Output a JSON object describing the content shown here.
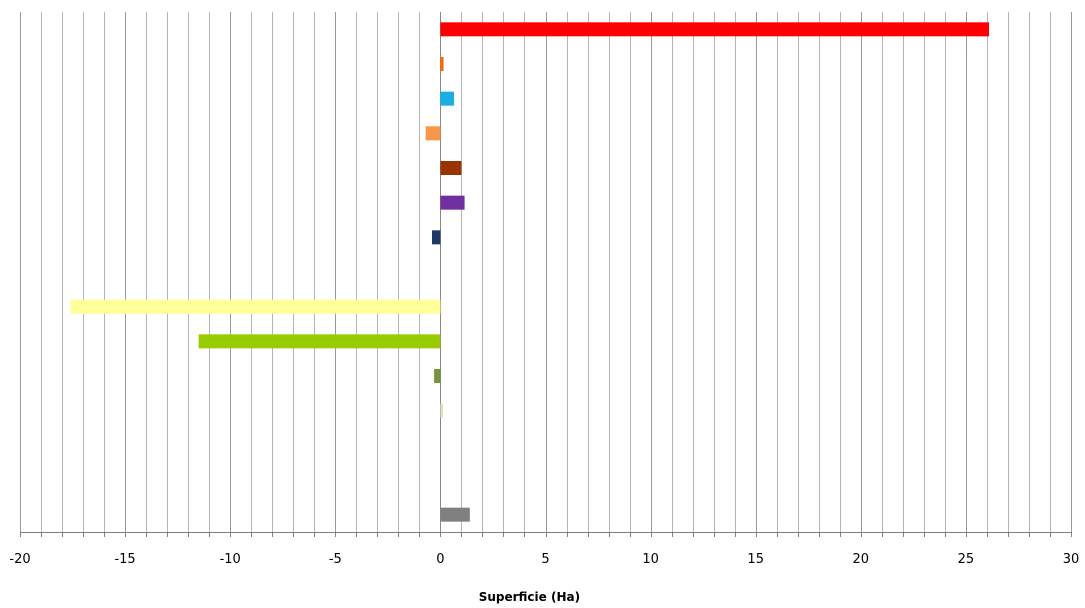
{
  "chart_data": {
    "type": "bar",
    "orientation": "horizontal",
    "xlabel": "Superficie (Ha)",
    "xlim": [
      -20,
      30
    ],
    "xticks": [
      -20,
      -15,
      -10,
      -5,
      0,
      5,
      10,
      15,
      20,
      25,
      30
    ],
    "minor_grid_step": 1,
    "grid": true,
    "category_count": 15,
    "bars": [
      {
        "slot": 0,
        "value": 26.1,
        "color": "#FF0000"
      },
      {
        "slot": 1,
        "value": 0.15,
        "color": "#FF6600"
      },
      {
        "slot": 2,
        "value": 0.65,
        "color": "#1CADE4"
      },
      {
        "slot": 3,
        "value": -0.7,
        "color": "#F79646"
      },
      {
        "slot": 4,
        "value": 1.0,
        "color": "#993300"
      },
      {
        "slot": 5,
        "value": 1.15,
        "color": "#7030A0"
      },
      {
        "slot": 6,
        "value": -0.4,
        "color": "#1F3864"
      },
      {
        "slot": 8,
        "value": -17.6,
        "color": "#FFFF99"
      },
      {
        "slot": 9,
        "value": -11.5,
        "color": "#99CC00"
      },
      {
        "slot": 10,
        "value": -0.3,
        "color": "#77933C"
      },
      {
        "slot": 11,
        "value": 0.12,
        "color": "#D7E4BD"
      },
      {
        "slot": 14,
        "value": 1.4,
        "color": "#808080"
      }
    ]
  }
}
